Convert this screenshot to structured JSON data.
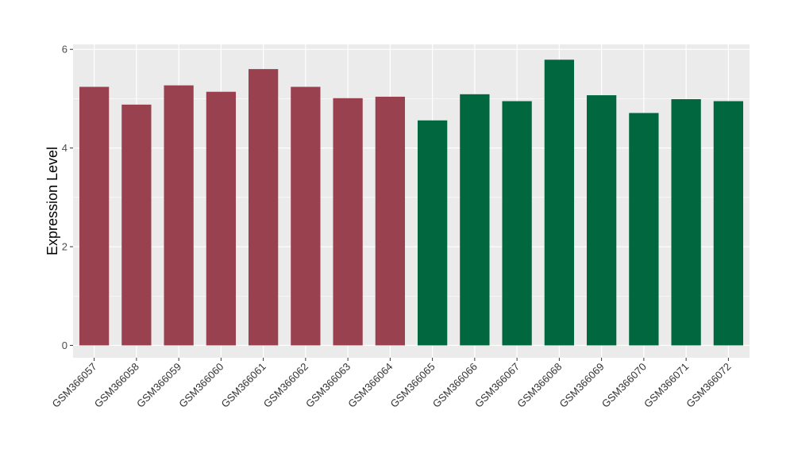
{
  "chart_data": {
    "type": "bar",
    "title": "",
    "xlabel": "",
    "ylabel": "Expression Level",
    "ylim": [
      -0.25,
      6.1
    ],
    "yticks": [
      0,
      2,
      4,
      6
    ],
    "grid": true,
    "categories": [
      "GSM366057",
      "GSM366058",
      "GSM366059",
      "GSM366060",
      "GSM366061",
      "GSM366062",
      "GSM366063",
      "GSM366064",
      "GSM366065",
      "GSM366066",
      "GSM366067",
      "GSM366068",
      "GSM366069",
      "GSM366070",
      "GSM366071",
      "GSM366072"
    ],
    "values": [
      5.24,
      4.88,
      5.27,
      5.14,
      5.6,
      5.24,
      5.01,
      5.04,
      4.56,
      5.09,
      4.95,
      5.79,
      5.07,
      4.71,
      4.99,
      4.95
    ],
    "group_colors": [
      "#9a4150",
      "#9a4150",
      "#9a4150",
      "#9a4150",
      "#9a4150",
      "#9a4150",
      "#9a4150",
      "#9a4150",
      "#00673f",
      "#00673f",
      "#00673f",
      "#00673f",
      "#00673f",
      "#00673f",
      "#00673f",
      "#00673f"
    ],
    "panel_background": "#ebebeb",
    "gridline_color": "#ffffff"
  }
}
